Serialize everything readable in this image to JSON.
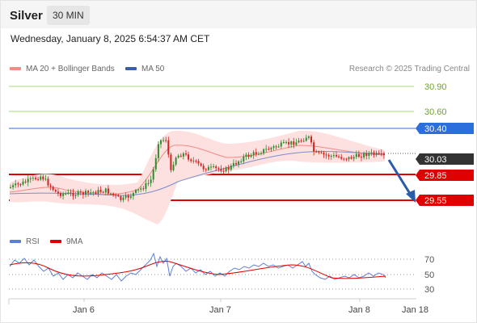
{
  "header": {
    "instrument": "Silver",
    "timeframe": "30 MIN"
  },
  "datetime": "Wednesday, January 8, 2025 6:54:37 AM CET",
  "legend": {
    "ma_bb": {
      "label": "MA 20 + Bollinger Bands",
      "color": "#f28b82"
    },
    "ma50": {
      "label": "MA 50",
      "color": "#3a5fa8"
    }
  },
  "credit": "Research © 2025 Trading Central",
  "levels": [
    {
      "value": "30.90",
      "color": "#8cc63f",
      "kind": "resistance-target"
    },
    {
      "value": "30.60",
      "color": "#8cc63f",
      "kind": "resistance-target"
    },
    {
      "value": "30.40",
      "color": "#2b6fdc",
      "kind": "pivot"
    },
    {
      "value": "30.03",
      "color": "#333333",
      "kind": "last-price"
    },
    {
      "value": "29.85",
      "color": "#e00000",
      "kind": "support-target"
    },
    {
      "value": "29.55",
      "color": "#e00000",
      "kind": "support-target"
    }
  ],
  "indicator_legend": {
    "rsi": {
      "label": "RSI",
      "color": "#5b7fd6"
    },
    "ma9": {
      "label": "9MA",
      "color": "#e00000"
    }
  },
  "rsi_axis": [
    "70",
    "50",
    "30"
  ],
  "x_axis": [
    "Jan 6",
    "Jan 7",
    "Jan 8",
    "Jan 18"
  ],
  "colors": {
    "bull": "#2e8b2e",
    "bear": "#d62020",
    "band_fill": "#fde0e0",
    "ma50": "#7a8fc8",
    "arrow": "#2b5ca8"
  }
}
